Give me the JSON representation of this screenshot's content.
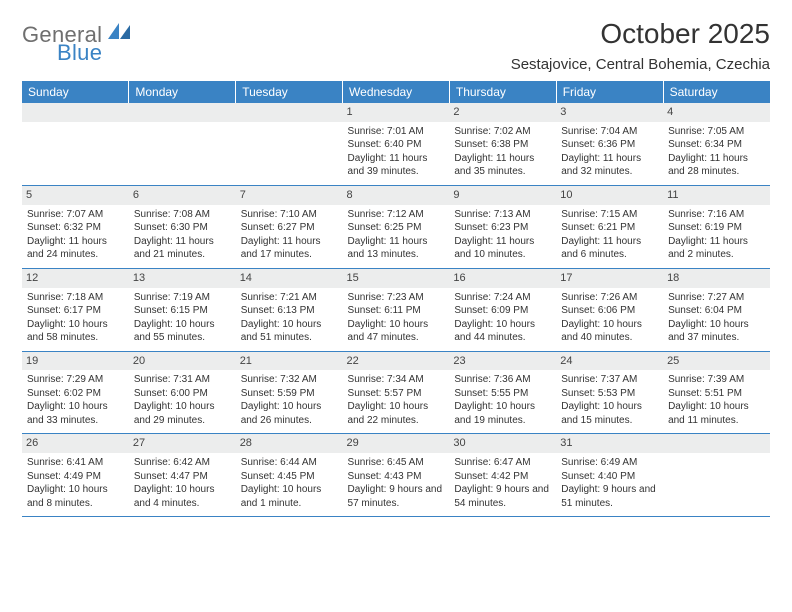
{
  "brand": {
    "name1": "General",
    "name2": "Blue"
  },
  "title": "October 2025",
  "location": "Sestajovice, Central Bohemia, Czechia",
  "colors": {
    "header_bg": "#3a83c4",
    "header_text": "#ffffff",
    "daynum_bg": "#eceded",
    "rule": "#3a83c4",
    "text": "#333333",
    "logo_gray": "#6f6f6f"
  },
  "typography": {
    "title_fontsize": 28,
    "location_fontsize": 15,
    "weekday_fontsize": 12,
    "daynum_fontsize": 11,
    "body_fontsize": 10
  },
  "weekdays": [
    "Sunday",
    "Monday",
    "Tuesday",
    "Wednesday",
    "Thursday",
    "Friday",
    "Saturday"
  ],
  "weeks": [
    [
      null,
      null,
      null,
      {
        "n": "1",
        "sr": "7:01 AM",
        "ss": "6:40 PM",
        "dl": "11 hours and 39 minutes."
      },
      {
        "n": "2",
        "sr": "7:02 AM",
        "ss": "6:38 PM",
        "dl": "11 hours and 35 minutes."
      },
      {
        "n": "3",
        "sr": "7:04 AM",
        "ss": "6:36 PM",
        "dl": "11 hours and 32 minutes."
      },
      {
        "n": "4",
        "sr": "7:05 AM",
        "ss": "6:34 PM",
        "dl": "11 hours and 28 minutes."
      }
    ],
    [
      {
        "n": "5",
        "sr": "7:07 AM",
        "ss": "6:32 PM",
        "dl": "11 hours and 24 minutes."
      },
      {
        "n": "6",
        "sr": "7:08 AM",
        "ss": "6:30 PM",
        "dl": "11 hours and 21 minutes."
      },
      {
        "n": "7",
        "sr": "7:10 AM",
        "ss": "6:27 PM",
        "dl": "11 hours and 17 minutes."
      },
      {
        "n": "8",
        "sr": "7:12 AM",
        "ss": "6:25 PM",
        "dl": "11 hours and 13 minutes."
      },
      {
        "n": "9",
        "sr": "7:13 AM",
        "ss": "6:23 PM",
        "dl": "11 hours and 10 minutes."
      },
      {
        "n": "10",
        "sr": "7:15 AM",
        "ss": "6:21 PM",
        "dl": "11 hours and 6 minutes."
      },
      {
        "n": "11",
        "sr": "7:16 AM",
        "ss": "6:19 PM",
        "dl": "11 hours and 2 minutes."
      }
    ],
    [
      {
        "n": "12",
        "sr": "7:18 AM",
        "ss": "6:17 PM",
        "dl": "10 hours and 58 minutes."
      },
      {
        "n": "13",
        "sr": "7:19 AM",
        "ss": "6:15 PM",
        "dl": "10 hours and 55 minutes."
      },
      {
        "n": "14",
        "sr": "7:21 AM",
        "ss": "6:13 PM",
        "dl": "10 hours and 51 minutes."
      },
      {
        "n": "15",
        "sr": "7:23 AM",
        "ss": "6:11 PM",
        "dl": "10 hours and 47 minutes."
      },
      {
        "n": "16",
        "sr": "7:24 AM",
        "ss": "6:09 PM",
        "dl": "10 hours and 44 minutes."
      },
      {
        "n": "17",
        "sr": "7:26 AM",
        "ss": "6:06 PM",
        "dl": "10 hours and 40 minutes."
      },
      {
        "n": "18",
        "sr": "7:27 AM",
        "ss": "6:04 PM",
        "dl": "10 hours and 37 minutes."
      }
    ],
    [
      {
        "n": "19",
        "sr": "7:29 AM",
        "ss": "6:02 PM",
        "dl": "10 hours and 33 minutes."
      },
      {
        "n": "20",
        "sr": "7:31 AM",
        "ss": "6:00 PM",
        "dl": "10 hours and 29 minutes."
      },
      {
        "n": "21",
        "sr": "7:32 AM",
        "ss": "5:59 PM",
        "dl": "10 hours and 26 minutes."
      },
      {
        "n": "22",
        "sr": "7:34 AM",
        "ss": "5:57 PM",
        "dl": "10 hours and 22 minutes."
      },
      {
        "n": "23",
        "sr": "7:36 AM",
        "ss": "5:55 PM",
        "dl": "10 hours and 19 minutes."
      },
      {
        "n": "24",
        "sr": "7:37 AM",
        "ss": "5:53 PM",
        "dl": "10 hours and 15 minutes."
      },
      {
        "n": "25",
        "sr": "7:39 AM",
        "ss": "5:51 PM",
        "dl": "10 hours and 11 minutes."
      }
    ],
    [
      {
        "n": "26",
        "sr": "6:41 AM",
        "ss": "4:49 PM",
        "dl": "10 hours and 8 minutes."
      },
      {
        "n": "27",
        "sr": "6:42 AM",
        "ss": "4:47 PM",
        "dl": "10 hours and 4 minutes."
      },
      {
        "n": "28",
        "sr": "6:44 AM",
        "ss": "4:45 PM",
        "dl": "10 hours and 1 minute."
      },
      {
        "n": "29",
        "sr": "6:45 AM",
        "ss": "4:43 PM",
        "dl": "9 hours and 57 minutes."
      },
      {
        "n": "30",
        "sr": "6:47 AM",
        "ss": "4:42 PM",
        "dl": "9 hours and 54 minutes."
      },
      {
        "n": "31",
        "sr": "6:49 AM",
        "ss": "4:40 PM",
        "dl": "9 hours and 51 minutes."
      },
      null
    ]
  ],
  "labels": {
    "sunrise": "Sunrise: ",
    "sunset": "Sunset: ",
    "daylight": "Daylight: "
  }
}
